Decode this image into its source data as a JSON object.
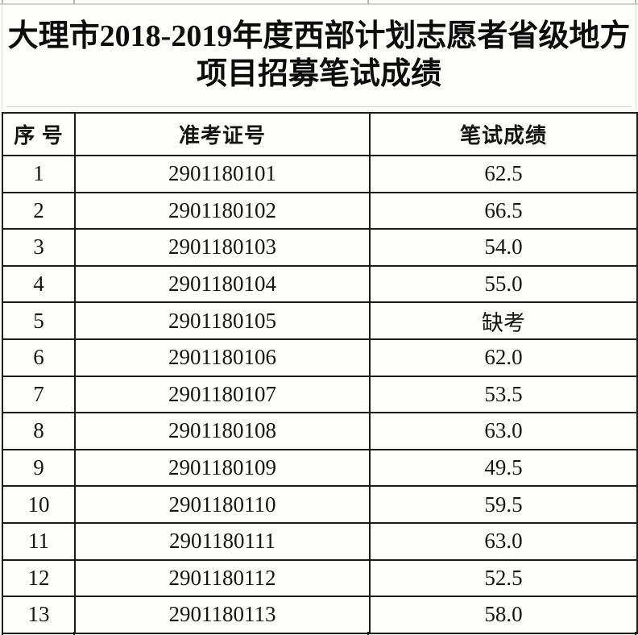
{
  "title": {
    "line1": "大理市2018-2019年度西部计划志愿者省级地方",
    "line2": "项目招募笔试成绩"
  },
  "table": {
    "headers": {
      "index": "序 号",
      "ticket": "准考证号",
      "score": "笔试成绩"
    },
    "rows": [
      {
        "index": "1",
        "ticket": "2901180101",
        "score": "62.5"
      },
      {
        "index": "2",
        "ticket": "2901180102",
        "score": "66.5"
      },
      {
        "index": "3",
        "ticket": "2901180103",
        "score": "54.0"
      },
      {
        "index": "4",
        "ticket": "2901180104",
        "score": "55.0"
      },
      {
        "index": "5",
        "ticket": "2901180105",
        "score": "缺考"
      },
      {
        "index": "6",
        "ticket": "2901180106",
        "score": "62.0"
      },
      {
        "index": "7",
        "ticket": "2901180107",
        "score": "53.5"
      },
      {
        "index": "8",
        "ticket": "2901180108",
        "score": "63.0"
      },
      {
        "index": "9",
        "ticket": "2901180109",
        "score": "49.5"
      },
      {
        "index": "10",
        "ticket": "2901180110",
        "score": "59.5"
      },
      {
        "index": "11",
        "ticket": "2901180111",
        "score": "63.0"
      },
      {
        "index": "12",
        "ticket": "2901180112",
        "score": "52.5"
      },
      {
        "index": "13",
        "ticket": "2901180113",
        "score": "58.0"
      }
    ]
  },
  "colors": {
    "table_border": "#1b1b1b",
    "hairline": "#d3d3cd",
    "text": "#141414",
    "background": "#fcfcfb"
  }
}
